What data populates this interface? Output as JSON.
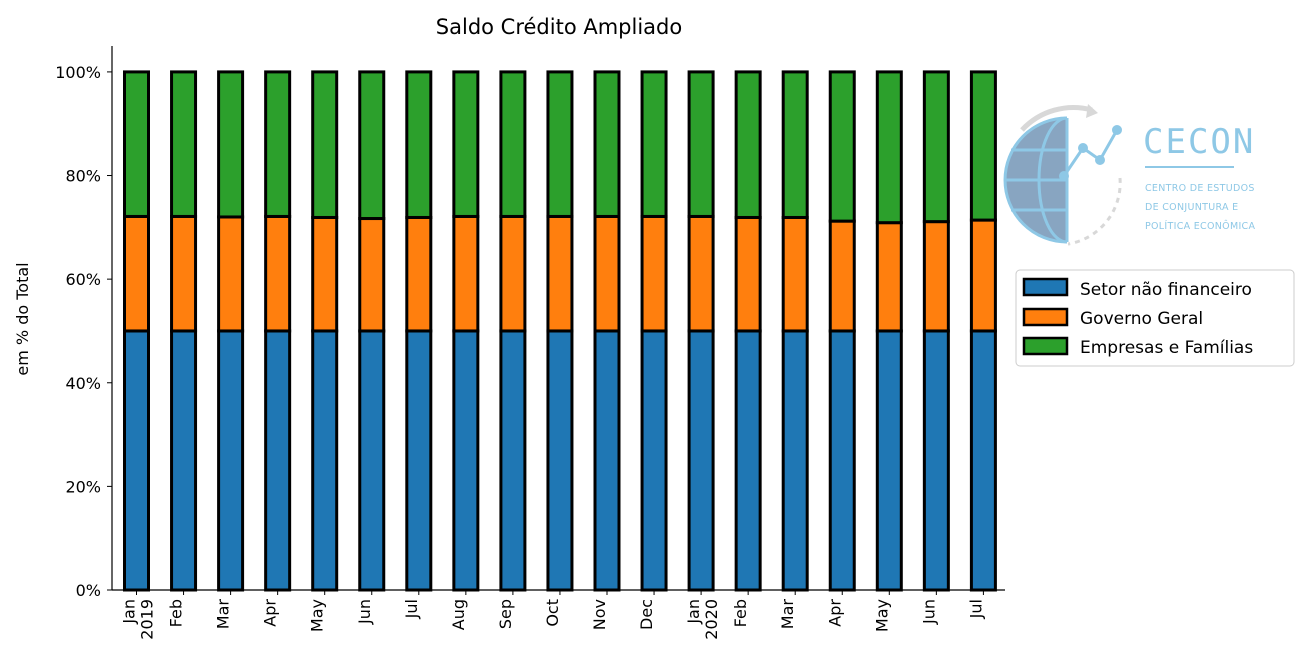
{
  "chart_data": {
    "type": "bar",
    "stacked": true,
    "title": "Saldo Crédito Ampliado",
    "xlabel": "",
    "ylabel": "em % do Total",
    "ylim": [
      0,
      105
    ],
    "y_ticks": [
      "0%",
      "20%",
      "40%",
      "60%",
      "80%",
      "100%"
    ],
    "y_tick_values": [
      0,
      20,
      40,
      60,
      80,
      100
    ],
    "categories": [
      {
        "line1": "Jan",
        "line2": "2019"
      },
      {
        "line1": "Feb",
        "line2": ""
      },
      {
        "line1": "Mar",
        "line2": ""
      },
      {
        "line1": "Apr",
        "line2": ""
      },
      {
        "line1": "May",
        "line2": ""
      },
      {
        "line1": "Jun",
        "line2": ""
      },
      {
        "line1": "Jul",
        "line2": ""
      },
      {
        "line1": "Aug",
        "line2": ""
      },
      {
        "line1": "Sep",
        "line2": ""
      },
      {
        "line1": "Oct",
        "line2": ""
      },
      {
        "line1": "Nov",
        "line2": ""
      },
      {
        "line1": "Dec",
        "line2": ""
      },
      {
        "line1": "Jan",
        "line2": "2020"
      },
      {
        "line1": "Feb",
        "line2": ""
      },
      {
        "line1": "Mar",
        "line2": ""
      },
      {
        "line1": "Apr",
        "line2": ""
      },
      {
        "line1": "May",
        "line2": ""
      },
      {
        "line1": "Jun",
        "line2": ""
      },
      {
        "line1": "Jul",
        "line2": ""
      }
    ],
    "series": [
      {
        "name": "Setor não financeiro",
        "color": "#1f77b4",
        "values": [
          50,
          50,
          50,
          50,
          50,
          50,
          50,
          50,
          50,
          50,
          50,
          50,
          50,
          50,
          50,
          50,
          50,
          50,
          50
        ]
      },
      {
        "name": "Governo Geral",
        "color": "#ff7f0e",
        "values": [
          22.1,
          22.1,
          22.0,
          22.1,
          21.9,
          21.7,
          21.9,
          22.1,
          22.1,
          22.1,
          22.1,
          22.1,
          22.1,
          21.9,
          21.9,
          21.2,
          20.9,
          21.1,
          21.4
        ]
      },
      {
        "name": "Empresas e Famílias",
        "color": "#2ca02c",
        "values": [
          27.9,
          27.9,
          28.0,
          27.9,
          28.1,
          28.3,
          28.1,
          27.9,
          27.9,
          27.9,
          27.9,
          27.9,
          27.9,
          28.1,
          28.1,
          28.8,
          29.1,
          28.9,
          28.6
        ]
      }
    ],
    "legend_position": "right",
    "grid": false
  },
  "logo": {
    "name": "CECON",
    "subtitle": [
      "CENTRO DE ESTUDOS",
      "DE CONJUNTURA E",
      "POLÍTICA ECONÔMICA"
    ]
  }
}
